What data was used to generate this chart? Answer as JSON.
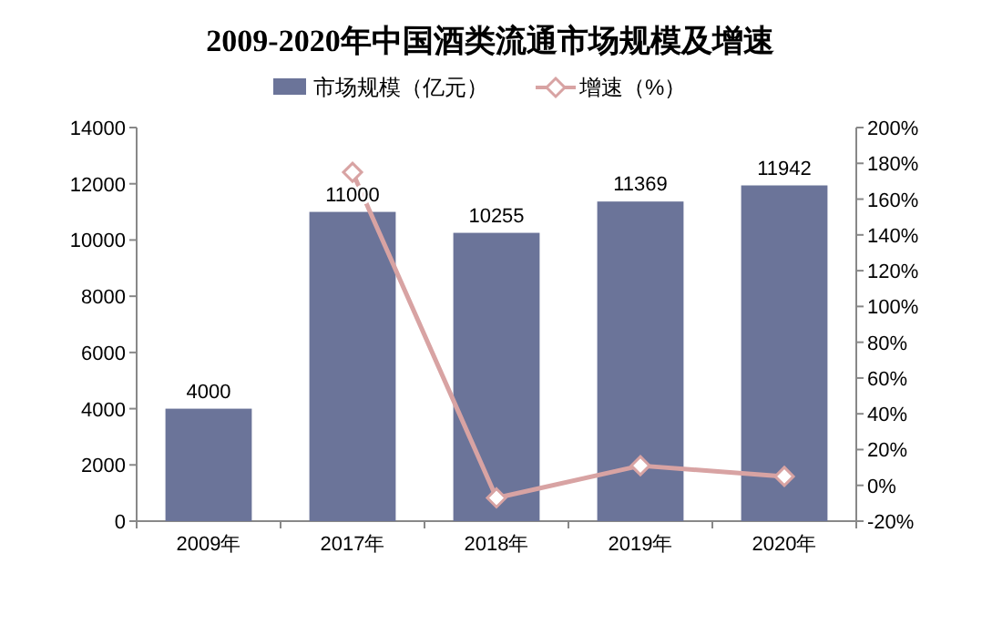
{
  "chart_data": {
    "type": "bar",
    "title": "2009-2020年中国酒类流通市场规模及增速",
    "categories": [
      "2009年",
      "2017年",
      "2018年",
      "2019年",
      "2020年"
    ],
    "series": [
      {
        "name": "市场规模（亿元）",
        "color": "#6b7499",
        "values": [
          4000,
          11000,
          10255,
          11369,
          11942
        ],
        "value_labels": [
          "4000",
          "11000",
          "10255",
          "11369",
          "11942"
        ]
      },
      {
        "name": "增速（%）",
        "type": "line",
        "axis": "y2",
        "color": "#d8a3a3",
        "marker": "diamond",
        "values": [
          null,
          175,
          -7,
          11,
          5
        ]
      }
    ],
    "ylim": [
      0,
      14000
    ],
    "yticks": [
      0,
      2000,
      4000,
      6000,
      8000,
      10000,
      12000,
      14000
    ],
    "y2lim": [
      -20,
      200
    ],
    "y2ticks": [
      {
        "value": -20,
        "label": "-20%"
      },
      {
        "value": 0,
        "label": "0%"
      },
      {
        "value": 20,
        "label": "20%"
      },
      {
        "value": 40,
        "label": "40%"
      },
      {
        "value": 60,
        "label": "60%"
      },
      {
        "value": 80,
        "label": "80%"
      },
      {
        "value": 100,
        "label": "100%"
      },
      {
        "value": 120,
        "label": "120%"
      },
      {
        "value": 140,
        "label": "140%"
      },
      {
        "value": 160,
        "label": "160%"
      },
      {
        "value": 180,
        "label": "180%"
      },
      {
        "value": 200,
        "label": "200%"
      }
    ],
    "legend": "top",
    "grid": false
  }
}
